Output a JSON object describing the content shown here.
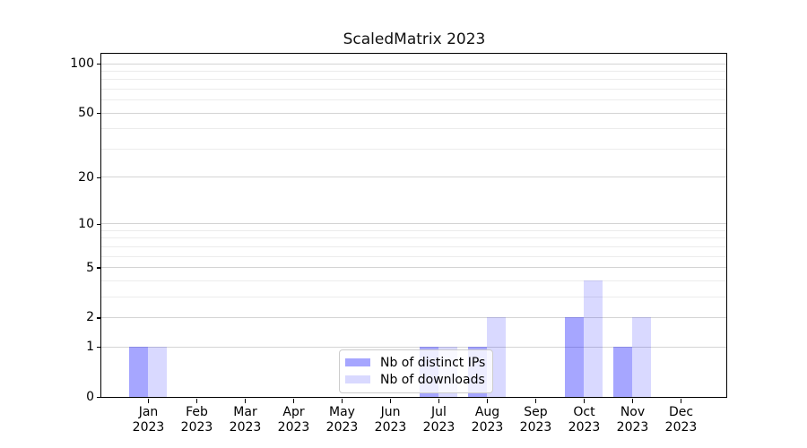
{
  "title": "ScaledMatrix 2023",
  "chart_data": {
    "type": "bar",
    "title": "ScaledMatrix 2023",
    "xlabel": "",
    "ylabel": "",
    "categories": [
      "Jan",
      "Feb",
      "Mar",
      "Apr",
      "May",
      "Jun",
      "Jul",
      "Aug",
      "Sep",
      "Oct",
      "Nov",
      "Dec"
    ],
    "x_tick_year": "2023",
    "series": [
      {
        "name": "Nb of distinct IPs",
        "color": "rgba(0,0,255,0.35)",
        "values": [
          1,
          0,
          0,
          0,
          0,
          0,
          1,
          1,
          0,
          2,
          1,
          0
        ]
      },
      {
        "name": "Nb of downloads",
        "color": "rgba(0,0,255,0.15)",
        "values": [
          1,
          0,
          0,
          0,
          0,
          0,
          1,
          2,
          0,
          4,
          2,
          0
        ]
      }
    ],
    "y_scale": "log1p",
    "ylim": [
      0,
      115
    ],
    "y_major_ticks": [
      0,
      1,
      2,
      5,
      10,
      20,
      50,
      100
    ],
    "y_minor_ticks": [
      3,
      4,
      6,
      7,
      8,
      9,
      30,
      40,
      60,
      70,
      80,
      90
    ],
    "grid": "horizontal-major-and-minor",
    "legend_position": "inside-bottom-center"
  },
  "colors": {
    "background": "#ffffff",
    "axis": "#000000",
    "grid_major": "#d4d4d4",
    "grid_minor": "#ececec",
    "legend_border": "#cccccc",
    "legend_background": "rgba(255,255,255,0.8)"
  }
}
